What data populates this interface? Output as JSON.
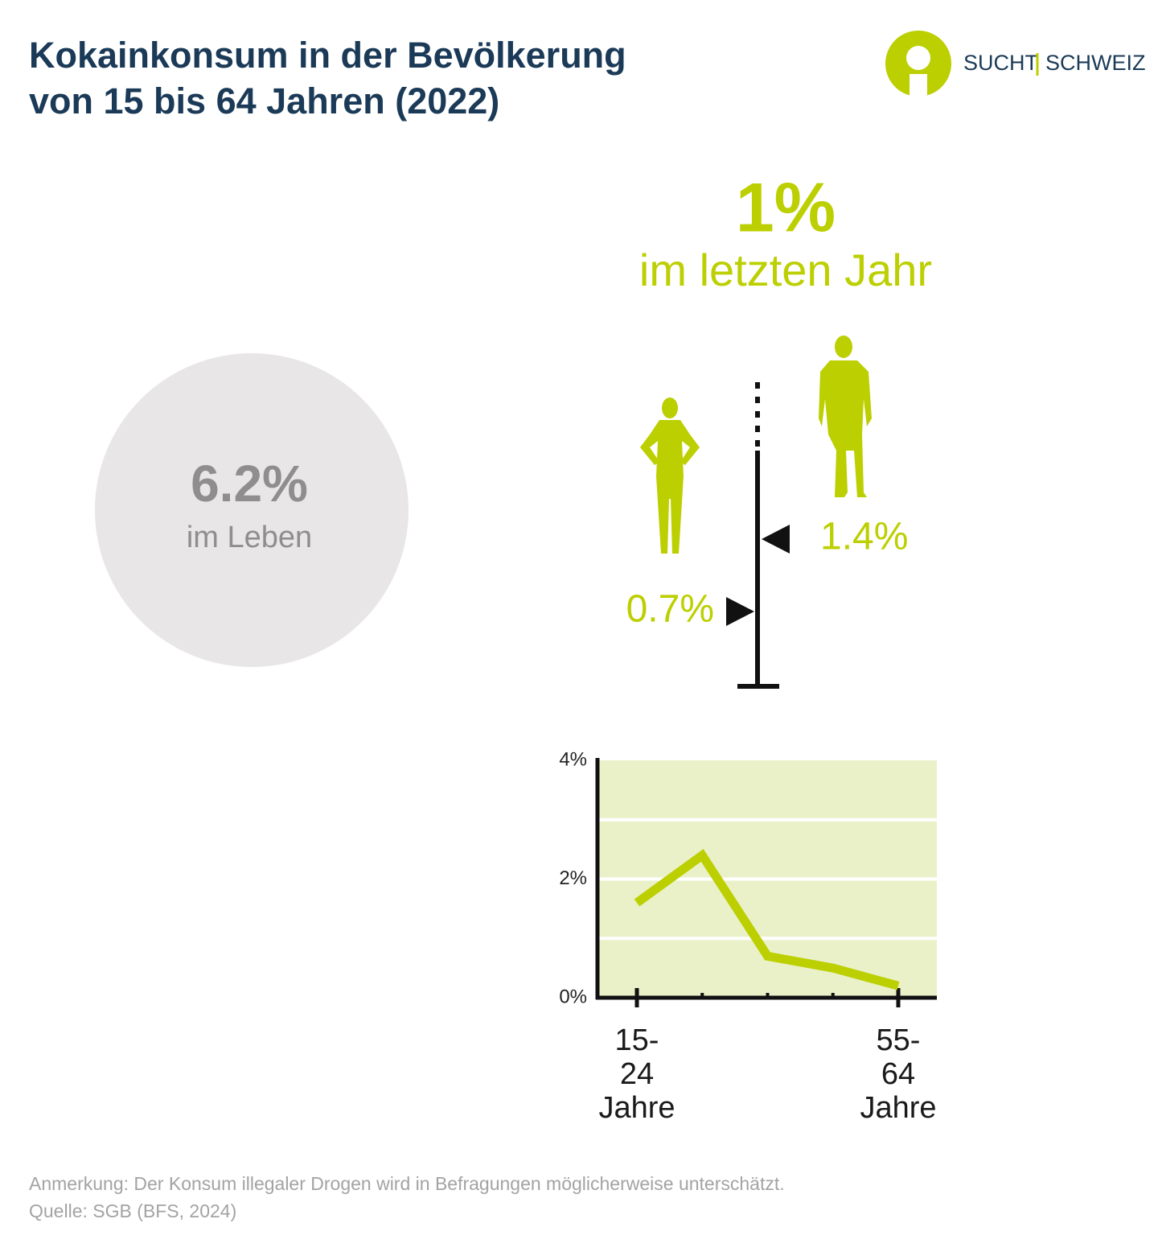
{
  "header": {
    "title_lines": [
      "Kokainkonsum in der Bevölkerung",
      "von 15 bis 64 Jahren (2022)"
    ],
    "logo": [
      "SUCHT",
      "SCHWEIZ"
    ]
  },
  "lifetime": {
    "value": 6.2,
    "value_label": "6.2%",
    "caption": "im Leben"
  },
  "last_year": {
    "value": 1,
    "value_label": "1%",
    "caption": "im letzten Jahr"
  },
  "by_sex": {
    "values": [
      0.7,
      1.4
    ],
    "value_labels": [
      "0.7%",
      "1.4%"
    ]
  },
  "chart_data": {
    "type": "line",
    "categories": [
      "15-24 Jahre",
      null,
      null,
      null,
      "55-64 Jahre"
    ],
    "series": [
      {
        "color": "#bccf00",
        "values": [
          1.6,
          2.4,
          0.7,
          0.5,
          0.2
        ]
      }
    ],
    "ylim": [
      0,
      4
    ],
    "yticks": [
      {
        "value": 0,
        "label": "0%"
      },
      {
        "value": 2,
        "label": "2%"
      },
      {
        "value": 4,
        "label": "4%"
      }
    ],
    "minor_yticks": [
      1,
      3
    ],
    "grid": true,
    "background": "#eaf1c8"
  },
  "footer": {
    "note": "Anmerkung: Der Konsum illegaler Drogen wird in Befragungen möglicherweise unterschätzt.",
    "source": "Quelle: SGB (BFS, 2024)"
  }
}
